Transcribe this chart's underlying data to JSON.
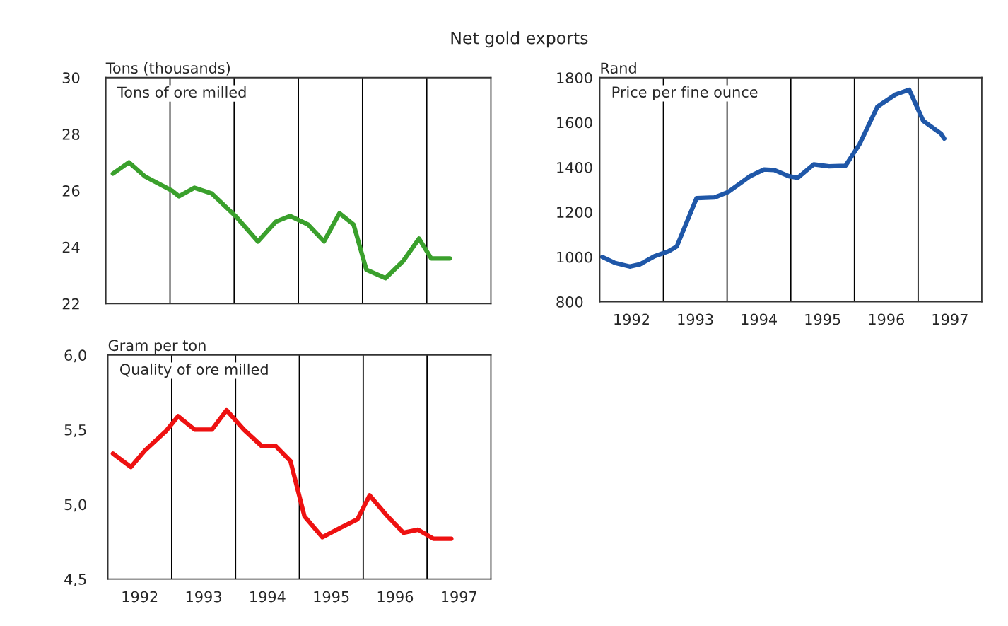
{
  "chart_data": [
    {
      "type": "line",
      "title": "Tons of ore milled",
      "ylabel": "Tons (thousands)",
      "annotations": [
        "Net gold exports"
      ],
      "x": [
        1992.11,
        1992.36,
        1992.61,
        1993.03,
        1993.14,
        1993.38,
        1993.65,
        1994.02,
        1994.37,
        1994.65,
        1994.87,
        1995.15,
        1995.4,
        1995.64,
        1995.86,
        1996.06,
        1996.36,
        1996.63,
        1996.88,
        1997.07,
        1997.36
      ],
      "series": [
        {
          "color": "#3aa02c",
          "values": [
            26.6,
            27.0,
            26.5,
            26.0,
            25.8,
            26.1,
            25.9,
            25.1,
            24.2,
            24.9,
            25.1,
            24.8,
            24.2,
            25.2,
            24.8,
            23.2,
            22.9,
            23.5,
            24.3,
            23.6,
            23.6
          ]
        }
      ],
      "xlim": [
        1992,
        1998
      ],
      "ylim": [
        22,
        30
      ],
      "yticks": [
        22,
        24,
        26,
        28,
        30
      ],
      "tick_labels": "y",
      "grid": false,
      "legend": false,
      "ref_lines": [
        {
          "axis": "x",
          "value": 1993,
          "color": "#000000"
        },
        {
          "axis": "x",
          "value": 1994,
          "color": "#000000"
        },
        {
          "axis": "x",
          "value": 1995,
          "color": "#000000"
        },
        {
          "axis": "x",
          "value": 1996,
          "color": "#000000"
        },
        {
          "axis": "x",
          "value": 1997,
          "color": "#000000"
        }
      ]
    },
    {
      "type": "line",
      "title": "Price per fine ounce",
      "ylabel": "Rand",
      "x": [
        1992.04,
        1992.24,
        1992.47,
        1992.63,
        1992.86,
        1993.08,
        1993.21,
        1993.52,
        1993.8,
        1994.02,
        1994.36,
        1994.58,
        1994.74,
        1994.97,
        1995.11,
        1995.36,
        1995.6,
        1995.86,
        1996.08,
        1996.36,
        1996.64,
        1996.86,
        1997.08,
        1997.36,
        1997.41
      ],
      "series": [
        {
          "color": "#1f57a8",
          "values": [
            1000,
            973,
            957,
            967,
            1003,
            1025,
            1047,
            1262,
            1265,
            1290,
            1360,
            1390,
            1388,
            1360,
            1353,
            1413,
            1404,
            1407,
            1503,
            1670,
            1724,
            1746,
            1607,
            1550,
            1528
          ]
        }
      ],
      "xlim": [
        1992,
        1998
      ],
      "xticks": [
        {
          "value": 1992.5,
          "label": "1992"
        },
        {
          "value": 1993.5,
          "label": "1993"
        },
        {
          "value": 1994.5,
          "label": "1994"
        },
        {
          "value": 1995.5,
          "label": "1995"
        },
        {
          "value": 1996.5,
          "label": "1996"
        },
        {
          "value": 1997.5,
          "label": "1997"
        }
      ],
      "ylim": [
        800,
        1800
      ],
      "yticks": [
        800,
        1000,
        1200,
        1400,
        1600,
        1800
      ],
      "grid": false,
      "legend": false,
      "ref_lines": [
        {
          "axis": "x",
          "value": 1993,
          "color": "#000000"
        },
        {
          "axis": "x",
          "value": 1994,
          "color": "#000000"
        },
        {
          "axis": "x",
          "value": 1995,
          "color": "#000000"
        },
        {
          "axis": "x",
          "value": 1996,
          "color": "#000000"
        },
        {
          "axis": "x",
          "value": 1997,
          "color": "#000000"
        }
      ]
    },
    {
      "type": "line",
      "title": "Quality of ore milled",
      "ylabel": "Gram per ton",
      "x": [
        1992.08,
        1992.36,
        1992.58,
        1992.91,
        1993.1,
        1993.36,
        1993.63,
        1993.86,
        1994.13,
        1994.41,
        1994.63,
        1994.86,
        1995.08,
        1995.36,
        1995.63,
        1995.91,
        1996.1,
        1996.36,
        1996.63,
        1996.86,
        1997.1,
        1997.38
      ],
      "series": [
        {
          "color": "#ee1111",
          "values": [
            5.34,
            5.25,
            5.36,
            5.49,
            5.59,
            5.5,
            5.5,
            5.63,
            5.5,
            5.39,
            5.39,
            5.29,
            4.92,
            4.78,
            4.84,
            4.9,
            5.06,
            4.93,
            4.81,
            4.83,
            4.77,
            4.77
          ]
        }
      ],
      "xlim": [
        1992,
        1998
      ],
      "xticks": [
        {
          "value": 1992.5,
          "label": "1992"
        },
        {
          "value": 1993.5,
          "label": "1993"
        },
        {
          "value": 1994.5,
          "label": "1994"
        },
        {
          "value": 1995.5,
          "label": "1995"
        },
        {
          "value": 1996.5,
          "label": "1996"
        },
        {
          "value": 1997.5,
          "label": "1997"
        }
      ],
      "ylim": [
        4.5,
        6.0
      ],
      "yticks": [
        {
          "value": 4.5,
          "label": "4,5"
        },
        {
          "value": 5.0,
          "label": "5,0"
        },
        {
          "value": 5.5,
          "label": "5,5"
        },
        {
          "value": 6.0,
          "label": "6,0"
        }
      ],
      "grid": false,
      "legend": false,
      "ref_lines": [
        {
          "axis": "x",
          "value": 1993,
          "color": "#000000"
        },
        {
          "axis": "x",
          "value": 1994,
          "color": "#000000"
        },
        {
          "axis": "x",
          "value": 1995,
          "color": "#000000"
        },
        {
          "axis": "x",
          "value": 1996,
          "color": "#000000"
        },
        {
          "axis": "x",
          "value": 1997,
          "color": "#000000"
        }
      ]
    }
  ]
}
